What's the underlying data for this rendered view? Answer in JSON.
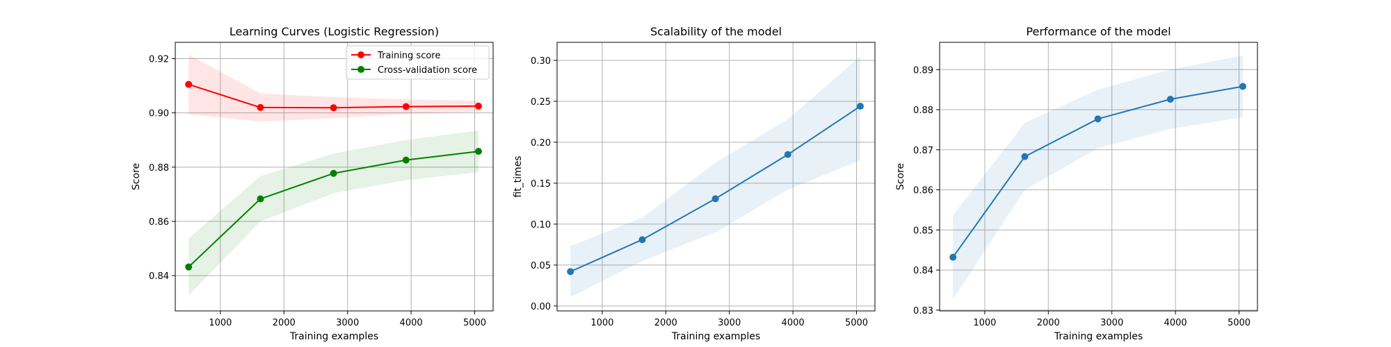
{
  "chart_data": [
    {
      "type": "line",
      "title": "Learning Curves (Logistic Regression)",
      "xlabel": "Training examples",
      "ylabel": "Score",
      "xlim": [
        290,
        5290
      ],
      "ylim": [
        0.827,
        0.926
      ],
      "xticks": [
        1000,
        2000,
        3000,
        4000,
        5000
      ],
      "yticks": [
        0.84,
        0.86,
        0.88,
        0.9,
        0.92
      ],
      "ytick_labels": [
        "0.84",
        "0.86",
        "0.88",
        "0.90",
        "0.92"
      ],
      "x": [
        500,
        1630,
        2780,
        3920,
        5060
      ],
      "grid": true,
      "legend_position": "top-right",
      "series": [
        {
          "name": "Training score",
          "color": "#ff0000",
          "band_color": "#ff0000",
          "values": [
            0.9105,
            0.902,
            0.9019,
            0.9023,
            0.9025
          ],
          "band_upper": [
            0.9215,
            0.9072,
            0.9058,
            0.905,
            0.9045
          ],
          "band_lower": [
            0.8995,
            0.8968,
            0.898,
            0.8996,
            0.9005
          ]
        },
        {
          "name": "Cross-validation score",
          "color": "#008000",
          "band_color": "#008000",
          "values": [
            0.8432,
            0.8683,
            0.8777,
            0.8826,
            0.8858
          ],
          "band_upper": [
            0.8537,
            0.8767,
            0.885,
            0.89,
            0.8935
          ],
          "band_lower": [
            0.8327,
            0.86,
            0.8704,
            0.8752,
            0.8781
          ]
        }
      ]
    },
    {
      "type": "line",
      "title": "Scalability of the model",
      "xlabel": "Training examples",
      "ylabel": "fit_times",
      "xlim": [
        290,
        5290
      ],
      "ylim": [
        -0.006,
        0.322
      ],
      "xticks": [
        1000,
        2000,
        3000,
        4000,
        5000
      ],
      "yticks": [
        0.0,
        0.05,
        0.1,
        0.15,
        0.2,
        0.25,
        0.3
      ],
      "ytick_labels": [
        "0.00",
        "0.05",
        "0.10",
        "0.15",
        "0.20",
        "0.25",
        "0.30"
      ],
      "x": [
        500,
        1630,
        2780,
        3920,
        5060
      ],
      "grid": true,
      "series": [
        {
          "color": "#1f77b4",
          "band_color": "#1f77b4",
          "values": [
            0.042,
            0.081,
            0.131,
            0.185,
            0.244
          ],
          "band_upper": [
            0.073,
            0.108,
            0.175,
            0.228,
            0.305
          ],
          "band_lower": [
            0.011,
            0.055,
            0.09,
            0.142,
            0.178
          ]
        }
      ]
    },
    {
      "type": "line",
      "title": "Performance of the model",
      "xlabel": "Training examples",
      "ylabel": "Score",
      "xlim": [
        290,
        5290
      ],
      "ylim": [
        0.8298,
        0.8968
      ],
      "xticks": [
        1000,
        2000,
        3000,
        4000,
        5000
      ],
      "yticks": [
        0.83,
        0.84,
        0.85,
        0.86,
        0.87,
        0.88,
        0.89
      ],
      "ytick_labels": [
        "0.83",
        "0.84",
        "0.85",
        "0.86",
        "0.87",
        "0.88",
        "0.89"
      ],
      "x": [
        500,
        1630,
        2780,
        3920,
        5060
      ],
      "grid": true,
      "series": [
        {
          "color": "#1f77b4",
          "band_color": "#1f77b4",
          "values": [
            0.8432,
            0.8683,
            0.8777,
            0.8826,
            0.8858
          ],
          "band_upper": [
            0.8537,
            0.8767,
            0.885,
            0.89,
            0.8935
          ],
          "band_lower": [
            0.8327,
            0.86,
            0.8704,
            0.8752,
            0.8781
          ]
        }
      ]
    }
  ]
}
